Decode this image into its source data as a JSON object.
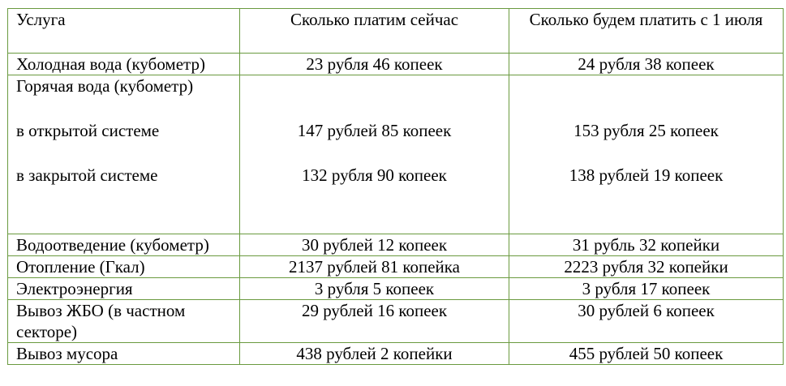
{
  "table": {
    "headers": [
      "Услуга",
      "Сколько платим сейчас",
      "Сколько будем платить с 1 июля"
    ],
    "rows": [
      {
        "service": "Холодная вода (кубометр)",
        "now": "23 рубля 46 копеек",
        "from_july": "24 рубля 38 копеек"
      },
      {
        "service": "Горячая вода (кубометр)",
        "open_system_label": "в открытой системе",
        "open_now": "147 рублей 85 копеек",
        "open_from_july": "153 рубля 25 копеек",
        "closed_system_label": "в закрытой системе",
        "closed_now": "132 рубля 90 копеек",
        "closed_from_july": "138 рублей 19 копеек"
      },
      {
        "service": "Водоотведение (кубометр)",
        "now": "30 рублей 12 копеек",
        "from_july": "31 рубль 32 копейки"
      },
      {
        "service": "Отопление (Гкал)",
        "now": "2137 рублей 81 копейка",
        "from_july": "2223 рубля 32 копейки"
      },
      {
        "service": "Электроэнергия",
        "now": "3 рубля 5 копеек",
        "from_july": "3 рубля 17 копеек"
      },
      {
        "service": "Вывоз ЖБО (в частном секторе)",
        "now": "29 рублей 16 копеек",
        "from_july": "30 рублей 6 копеек"
      },
      {
        "service": "Вывоз мусора",
        "now": "438 рублей 2 копейки",
        "from_july": "455 рублей 50 копеек"
      }
    ]
  }
}
